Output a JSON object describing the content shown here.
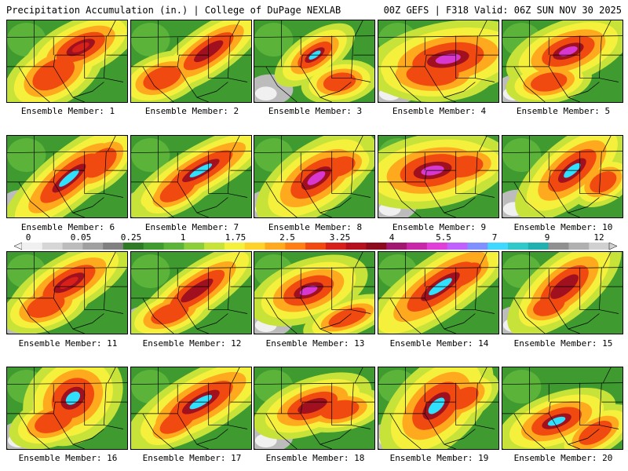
{
  "header": {
    "left_title": "Precipitation Accumulation (in.) | College of DuPage NEXLAB",
    "right_title": "00Z GEFS | F318 Valid: 06Z SUN NOV 30 2025"
  },
  "panel_label_prefix": "Ensemble Member: ",
  "members": [
    {
      "id": 1,
      "label": "Ensemble Member: 1",
      "peak_in": 3.25
    },
    {
      "id": 2,
      "label": "Ensemble Member: 2",
      "peak_in": 4
    },
    {
      "id": 3,
      "label": "Ensemble Member: 3",
      "peak_in": 7
    },
    {
      "id": 4,
      "label": "Ensemble Member: 4",
      "peak_in": 5.5
    },
    {
      "id": 5,
      "label": "Ensemble Member: 5",
      "peak_in": 5.5
    },
    {
      "id": 6,
      "label": "Ensemble Member: 6",
      "peak_in": 7
    },
    {
      "id": 7,
      "label": "Ensemble Member: 7",
      "peak_in": 7
    },
    {
      "id": 8,
      "label": "Ensemble Member: 8",
      "peak_in": 5.5
    },
    {
      "id": 9,
      "label": "Ensemble Member: 9",
      "peak_in": 5.5
    },
    {
      "id": 10,
      "label": "Ensemble Member: 10",
      "peak_in": 7
    },
    {
      "id": 11,
      "label": "Ensemble Member: 11",
      "peak_in": 3.25
    },
    {
      "id": 12,
      "label": "Ensemble Member: 12",
      "peak_in": 4
    },
    {
      "id": 13,
      "label": "Ensemble Member: 13",
      "peak_in": 5.5
    },
    {
      "id": 14,
      "label": "Ensemble Member: 14",
      "peak_in": 7
    },
    {
      "id": 15,
      "label": "Ensemble Member: 15",
      "peak_in": 4
    },
    {
      "id": 16,
      "label": "Ensemble Member: 16",
      "peak_in": 7
    },
    {
      "id": 17,
      "label": "Ensemble Member: 17",
      "peak_in": 7
    },
    {
      "id": 18,
      "label": "Ensemble Member: 18",
      "peak_in": 4
    },
    {
      "id": 19,
      "label": "Ensemble Member: 19",
      "peak_in": 7
    },
    {
      "id": 20,
      "label": "Ensemble Member: 20",
      "peak_in": 7
    }
  ],
  "colorbar": {
    "tick_labels": [
      "0",
      "0.05",
      "0.25",
      "1",
      "1.75",
      "2.5",
      "3.25",
      "4",
      "5.5",
      "7",
      "9",
      "12"
    ],
    "colors": [
      "#f0f0f0",
      "#d6d6d6",
      "#bcbcbc",
      "#a0a0a0",
      "#808080",
      "#2e7a26",
      "#3f9a30",
      "#5cb33a",
      "#8ccd3c",
      "#c7e33a",
      "#f5f03c",
      "#ffd22a",
      "#ffaa1e",
      "#ff7f14",
      "#f04a10",
      "#d8201a",
      "#b4101e",
      "#8c0a1e",
      "#a01870",
      "#c828a8",
      "#e040d8",
      "#c060ff",
      "#8090ff",
      "#40d8ff",
      "#30c8c8",
      "#20b0b0",
      "#909090",
      "#b0b0b0",
      "#d0d0d0"
    ]
  }
}
